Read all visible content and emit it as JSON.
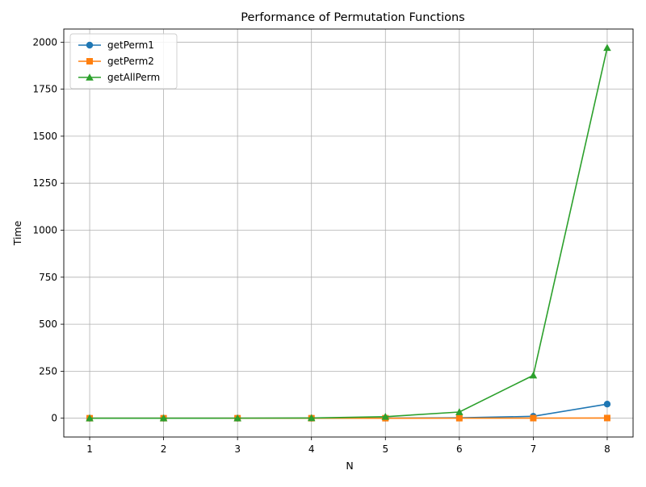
{
  "chart_data": {
    "type": "line",
    "title": "Performance of Permutation Functions",
    "xlabel": "N",
    "ylabel": "Time",
    "x": [
      1,
      2,
      3,
      4,
      5,
      6,
      7,
      8
    ],
    "xlim": [
      0.65,
      8.35
    ],
    "ylim": [
      -100,
      2070
    ],
    "xticks": [
      1,
      2,
      3,
      4,
      5,
      6,
      7,
      8
    ],
    "yticks": [
      0,
      250,
      500,
      750,
      1000,
      1250,
      1500,
      1750,
      2000
    ],
    "grid": true,
    "legend_position": "top-left",
    "series": [
      {
        "name": "getPerm1",
        "color": "#1f77b4",
        "marker": "circle",
        "values": [
          0.01,
          0.01,
          0.02,
          0.1,
          0.4,
          2,
          10,
          75
        ]
      },
      {
        "name": "getPerm2",
        "color": "#ff7f0e",
        "marker": "square",
        "values": [
          0.01,
          0.01,
          0.01,
          0.02,
          0.05,
          0.2,
          0.5,
          1
        ]
      },
      {
        "name": "getAllPerm",
        "color": "#2ca02c",
        "marker": "triangle",
        "values": [
          0.02,
          0.05,
          0.2,
          1,
          8,
          33,
          228,
          1970
        ]
      }
    ]
  }
}
